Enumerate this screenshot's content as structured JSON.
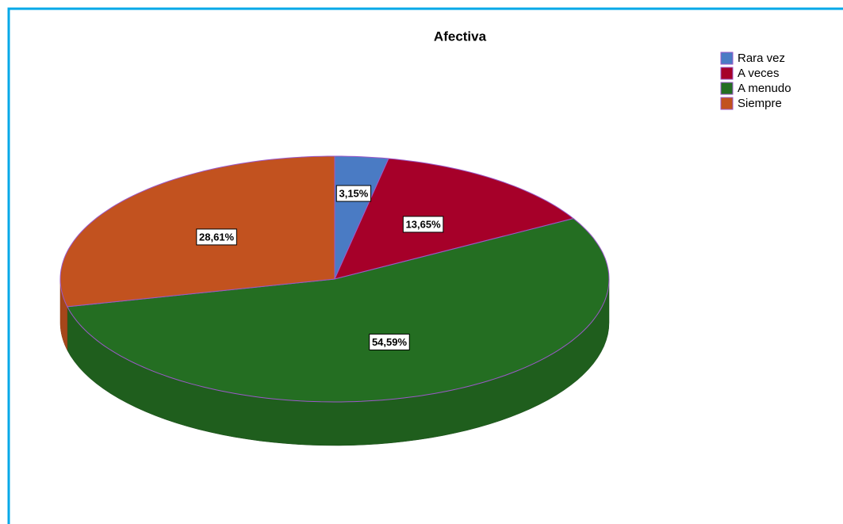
{
  "chart_data": {
    "type": "pie",
    "title": "Afectiva",
    "categories": [
      "Rara vez",
      "A veces",
      "A menudo",
      "Siempre"
    ],
    "values": [
      3.15,
      13.65,
      54.59,
      28.61
    ],
    "value_labels": [
      "3,15%",
      "13,65%",
      "54,59%",
      "28,61%"
    ],
    "colors": [
      "#4a7bc4",
      "#a60029",
      "#246e22",
      "#c2521f"
    ],
    "legend": "top-right"
  }
}
